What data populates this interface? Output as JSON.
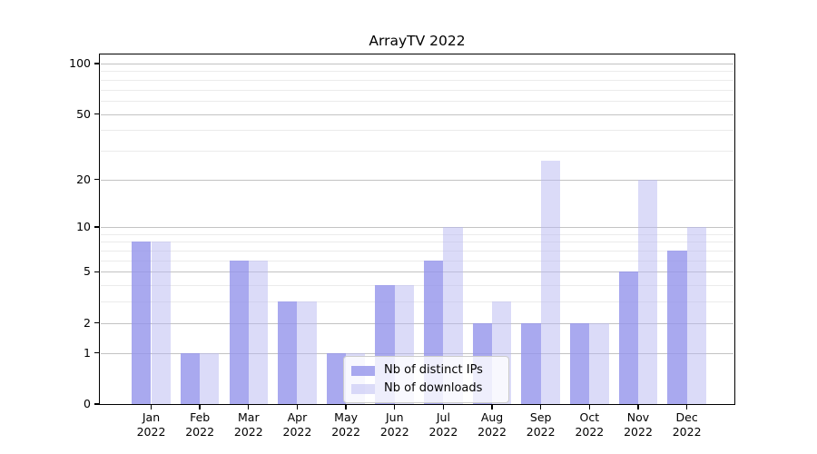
{
  "figure_title": "ArrayTV 2022",
  "chart_data": {
    "type": "bar",
    "title": "ArrayTV 2022",
    "categories": [
      "Jan 2022",
      "Feb 2022",
      "Mar 2022",
      "Apr 2022",
      "May 2022",
      "Jun 2022",
      "Jul 2022",
      "Aug 2022",
      "Sep 2022",
      "Oct 2022",
      "Nov 2022",
      "Dec 2022"
    ],
    "series": [
      {
        "name": "Nb of distinct IPs",
        "color": "#a9a9ef",
        "fill": "rgba(148,148,235,0.8)",
        "values": [
          8,
          1,
          6,
          3,
          1,
          4,
          6,
          2,
          2,
          2,
          5,
          7
        ]
      },
      {
        "name": "Nb of downloads",
        "color": "#dbdbf8",
        "fill": "rgba(183,183,241,0.5)",
        "values": [
          8,
          1,
          6,
          3,
          1,
          4,
          10,
          3,
          26,
          2,
          20,
          10
        ]
      }
    ],
    "xlabel": "",
    "ylabel": "",
    "y_scale": "log1p",
    "y_axis": {
      "tick_values": [
        0,
        1,
        2,
        5,
        10,
        20,
        50,
        100
      ],
      "tick_labels": [
        "0",
        "1",
        "2",
        "5",
        "10",
        "20",
        "50",
        "100"
      ],
      "minor_gridline_values": [
        3,
        4,
        6,
        7,
        8,
        9,
        30,
        40,
        60,
        70,
        80,
        90
      ],
      "range": [
        0,
        113
      ]
    },
    "grid": true,
    "legend_position": "lower center",
    "colors": {
      "major_grid": "#c3c3c3",
      "minor_grid": "#ebebeb",
      "spine": "#000000",
      "background": "#ffffff"
    }
  }
}
